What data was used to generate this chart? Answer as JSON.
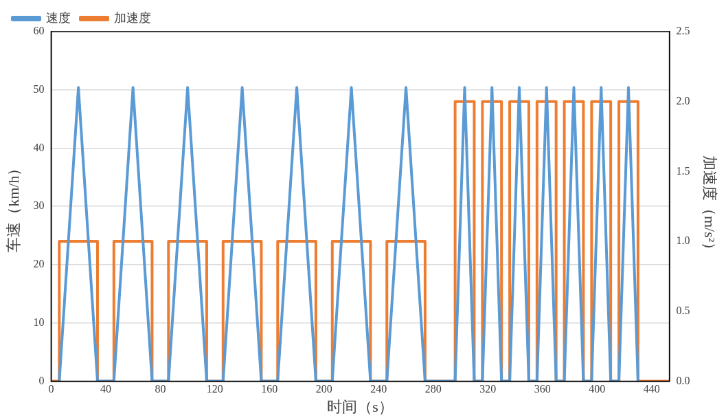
{
  "chart_data": {
    "type": "line",
    "xlabel": "时间（s）",
    "ylabel": "车速（km/h）",
    "y2label": "加速度（m/s²）",
    "xlim": [
      0,
      453
    ],
    "xticks": [
      0,
      40,
      80,
      120,
      160,
      200,
      240,
      280,
      320,
      360,
      400,
      440
    ],
    "ylim": [
      0,
      60
    ],
    "yticks": [
      0,
      10,
      20,
      30,
      40,
      50,
      60
    ],
    "y2lim": [
      0,
      2.5
    ],
    "y2ticks": [
      {
        "value": 0,
        "label": "0.0"
      },
      {
        "value": 0.5,
        "label": "0.5"
      },
      {
        "value": 1,
        "label": "1.0"
      },
      {
        "value": 1.5,
        "label": "1.5"
      },
      {
        "value": 2,
        "label": "2.0"
      },
      {
        "value": 2.5,
        "label": "2.5"
      }
    ],
    "grid": "y",
    "legend": "top left",
    "marker": "none",
    "line_style": "solid",
    "series": [
      {
        "name": "速度",
        "type": "line",
        "color": "#5b9bd5",
        "x": [
          6,
          20,
          34,
          46,
          60,
          74,
          86,
          100,
          114,
          126,
          140,
          154,
          166,
          180,
          194,
          206,
          220,
          234,
          246,
          260,
          274,
          296,
          303,
          310,
          316,
          323,
          330,
          336,
          343,
          350,
          356,
          363,
          370,
          376,
          383,
          390,
          396,
          403,
          410,
          416,
          423,
          430
        ],
        "values": [
          0,
          50.4,
          0,
          0,
          50.4,
          0,
          0,
          50.4,
          0,
          0,
          50.4,
          0,
          0,
          50.4,
          0,
          0,
          50.4,
          0,
          0,
          50.4,
          0,
          0,
          50.4,
          0,
          0,
          50.4,
          0,
          0,
          50.4,
          0,
          0,
          50.4,
          0,
          0,
          50.4,
          0,
          0,
          50.4,
          0,
          0,
          50.4,
          0
        ]
      },
      {
        "name": "加速度",
        "type": "step",
        "axis": "y2",
        "color": "#ed7d31",
        "x": [
          0,
          6,
          34,
          46,
          74,
          86,
          114,
          126,
          154,
          166,
          194,
          206,
          234,
          246,
          274,
          296,
          310,
          316,
          330,
          336,
          350,
          356,
          370,
          376,
          390,
          396,
          410,
          416,
          430,
          453
        ],
        "values": [
          0,
          1,
          0,
          1,
          0,
          1,
          0,
          1,
          0,
          1,
          0,
          1,
          0,
          1,
          0,
          2,
          0,
          2,
          0,
          2,
          0,
          2,
          0,
          2,
          0,
          2,
          0,
          2,
          0,
          0
        ]
      }
    ]
  }
}
